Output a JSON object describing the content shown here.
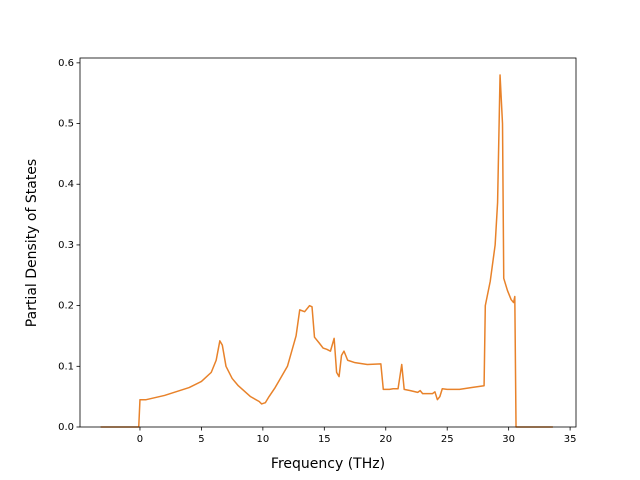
{
  "chart_data": {
    "type": "line",
    "xlabel": "Frequency (THz)",
    "ylabel": "Partial Density of States",
    "x": [
      -3.2,
      -0.1,
      0,
      0.5,
      2,
      4,
      5,
      5.8,
      6.2,
      6.5,
      6.7,
      7,
      7.5,
      8,
      9,
      9.7,
      9.9,
      10.2,
      10.5,
      11,
      12,
      12.7,
      13,
      13.4,
      13.8,
      14,
      14.2,
      14.6,
      14.9,
      15.2,
      15.5,
      15.8,
      16,
      16.2,
      16.4,
      16.6,
      16.9,
      17.5,
      18.5,
      19.6,
      19.8,
      20.3,
      20.6,
      21,
      21.3,
      21.5,
      22,
      22.6,
      22.8,
      23,
      23.8,
      24,
      24.2,
      24.4,
      24.6,
      25,
      26,
      27,
      28,
      28.1,
      28.5,
      28.9,
      29.1,
      29.3,
      29.5,
      29.6,
      29.9,
      30.2,
      30.4,
      30.5,
      30.6,
      33.6
    ],
    "series": [
      {
        "color": "#e8822a",
        "values": [
          0,
          0,
          0.045,
          0.045,
          0.052,
          0.065,
          0.075,
          0.09,
          0.11,
          0.142,
          0.135,
          0.1,
          0.08,
          0.068,
          0.05,
          0.042,
          0.038,
          0.04,
          0.05,
          0.065,
          0.1,
          0.15,
          0.193,
          0.19,
          0.2,
          0.198,
          0.148,
          0.138,
          0.13,
          0.128,
          0.125,
          0.146,
          0.09,
          0.083,
          0.118,
          0.125,
          0.11,
          0.106,
          0.103,
          0.104,
          0.062,
          0.062,
          0.063,
          0.063,
          0.103,
          0.062,
          0.06,
          0.057,
          0.06,
          0.055,
          0.055,
          0.058,
          0.045,
          0.05,
          0.063,
          0.062,
          0.062,
          0.065,
          0.068,
          0.2,
          0.24,
          0.3,
          0.37,
          0.58,
          0.5,
          0.245,
          0.225,
          0.21,
          0.205,
          0.215,
          0,
          0
        ]
      }
    ],
    "xlim": [
      -4.88,
      35.48
    ],
    "ylim": [
      0,
      0.608
    ],
    "xticks": [
      0,
      5,
      10,
      15,
      20,
      25,
      30,
      35
    ],
    "yticks": [
      {
        "value": 0,
        "label": "0.0"
      },
      0.1,
      0.2,
      0.3,
      0.4,
      0.5,
      0.6
    ]
  }
}
